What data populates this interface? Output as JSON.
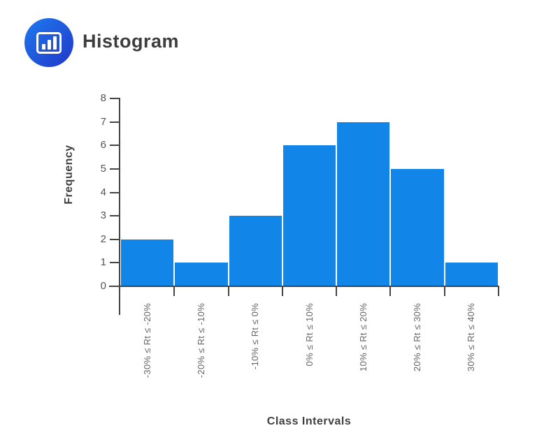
{
  "header": {
    "title": "Histogram",
    "logo_icon": "bar-chart-icon"
  },
  "colors": {
    "bar": "#1186e8",
    "axis": "#454545",
    "y_tick_label": "#555555",
    "x_tick_label": "#666666",
    "axis_title": "#3f3f3f",
    "logo_gradient_start": "#1e7bf0",
    "logo_gradient_end": "#2137c8"
  },
  "chart_data": {
    "type": "bar",
    "chart_kind": "histogram",
    "title": "Histogram",
    "categories": [
      "-30% ≤ Rt ≤ -20%",
      "-20% ≤ Rt ≤ -10%",
      "-10% ≤ Rt ≤ 0%",
      "0% ≤ Rt ≤ 10%",
      "10% ≤ Rt ≤ 20%",
      "20% ≤ Rt ≤ 30%",
      "30% ≤ Rt ≤ 40%",
      ""
    ],
    "values": [
      2,
      1,
      3,
      6,
      7,
      5,
      1
    ],
    "xlabel": "Class Intervals",
    "ylabel": "Frequency",
    "ylim": [
      0,
      8
    ],
    "yticks": [
      0,
      1,
      2,
      3,
      4,
      5,
      6,
      7,
      8
    ],
    "grid": false,
    "legend": false,
    "bar_color": "#1186e8",
    "orientation": "vertical",
    "x_tick_label_rotation_deg": 90
  }
}
